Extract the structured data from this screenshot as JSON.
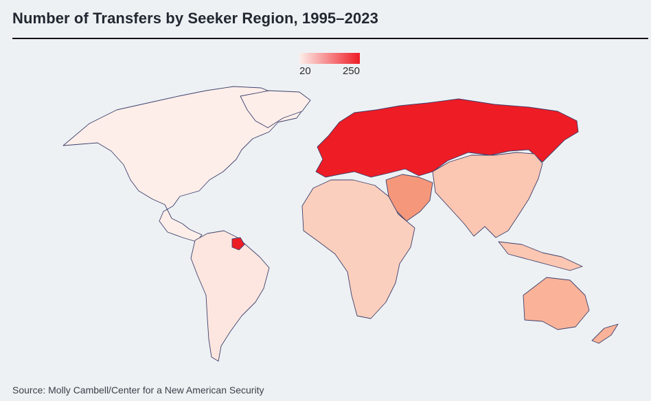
{
  "header": {
    "title": "Number of Transfers by Seeker Region, 1995–2023"
  },
  "legend": {
    "min_label": "20",
    "max_label": "250",
    "color_low": "#fdeee9",
    "color_high": "#ee1c25"
  },
  "map": {
    "regions": [
      {
        "name": "North America",
        "fill": "#fdeee9"
      },
      {
        "name": "Greenland",
        "fill": "#fdeee9"
      },
      {
        "name": "South America",
        "fill": "#fde6df"
      },
      {
        "name": "French Guiana",
        "fill": "#ee1c25"
      },
      {
        "name": "Europe & Russia",
        "fill": "#ee1c25"
      },
      {
        "name": "Middle East",
        "fill": "#f5977b"
      },
      {
        "name": "Africa",
        "fill": "#fbcfbd"
      },
      {
        "name": "Asia",
        "fill": "#fbc6b2"
      },
      {
        "name": "Australia & Oceania",
        "fill": "#fab399"
      }
    ]
  },
  "footer": {
    "source": "Source: Molly Cambell/Center for a New American Security"
  }
}
